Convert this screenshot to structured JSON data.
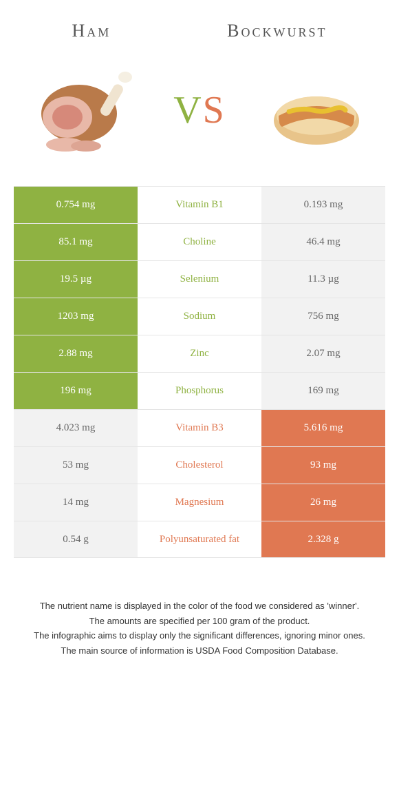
{
  "header": {
    "left_title": "Ham",
    "right_title": "Bockwurst",
    "vs_v": "V",
    "vs_s": "S"
  },
  "colors": {
    "green": "#8fb242",
    "orange": "#e07852",
    "gray": "#f2f2f2",
    "border": "#e5e5e5",
    "text": "#333333"
  },
  "rows": [
    {
      "left": "0.754 mg",
      "name": "Vitamin B1",
      "right": "0.193 mg",
      "winner": "left"
    },
    {
      "left": "85.1 mg",
      "name": "Choline",
      "right": "46.4 mg",
      "winner": "left"
    },
    {
      "left": "19.5 µg",
      "name": "Selenium",
      "right": "11.3 µg",
      "winner": "left"
    },
    {
      "left": "1203 mg",
      "name": "Sodium",
      "right": "756 mg",
      "winner": "left"
    },
    {
      "left": "2.88 mg",
      "name": "Zinc",
      "right": "2.07 mg",
      "winner": "left"
    },
    {
      "left": "196 mg",
      "name": "Phosphorus",
      "right": "169 mg",
      "winner": "left"
    },
    {
      "left": "4.023 mg",
      "name": "Vitamin B3",
      "right": "5.616 mg",
      "winner": "right"
    },
    {
      "left": "53 mg",
      "name": "Cholesterol",
      "right": "93 mg",
      "winner": "right"
    },
    {
      "left": "14 mg",
      "name": "Magnesium",
      "right": "26 mg",
      "winner": "right"
    },
    {
      "left": "0.54 g",
      "name": "Polyunsaturated fat",
      "right": "2.328 g",
      "winner": "right"
    }
  ],
  "notes": [
    "The nutrient name is displayed in the color of the food we considered as 'winner'.",
    "The amounts are specified per 100 gram of the product.",
    "The infographic aims to display only the significant differences, ignoring minor ones.",
    "The main source of information is USDA Food Composition Database."
  ]
}
